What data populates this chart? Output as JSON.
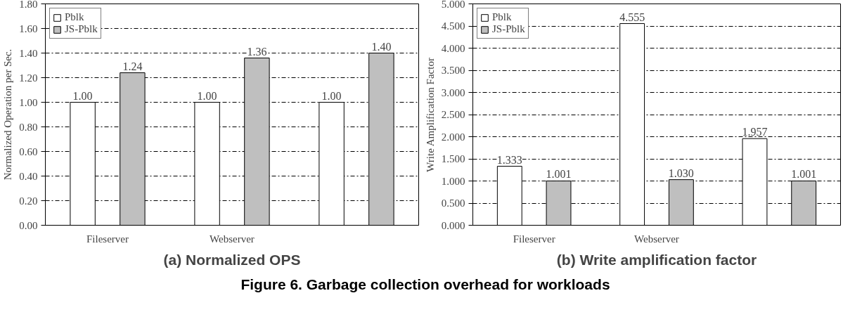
{
  "chart_data": [
    {
      "type": "bar",
      "title": "(a) Normalized OPS",
      "ylabel": "Normalized Operation per Sec.",
      "categories": [
        "Fileserver",
        "Webserver",
        null
      ],
      "series": [
        {
          "name": "Pblk",
          "color": "#ffffff",
          "values": [
            1.0,
            1.0,
            1.0
          ],
          "value_labels": [
            "1.00",
            "1.00",
            "1.00"
          ]
        },
        {
          "name": "JS-Pblk",
          "color": "#bfbfbf",
          "values": [
            1.24,
            1.36,
            1.4
          ],
          "value_labels": [
            "1.24",
            "1.36",
            "1.40"
          ]
        }
      ],
      "ylim": [
        0,
        1.8
      ],
      "yticks": [
        {
          "value": 0,
          "label": "0.00"
        },
        {
          "value": 0.2,
          "label": "0.20"
        },
        {
          "value": 0.4,
          "label": "0.40"
        },
        {
          "value": 0.6,
          "label": "0.60"
        },
        {
          "value": 0.8,
          "label": "0.80"
        },
        {
          "value": 1.0,
          "label": "1.00"
        },
        {
          "value": 1.2,
          "label": "1.20"
        },
        {
          "value": 1.4,
          "label": "1.40"
        },
        {
          "value": 1.6,
          "label": "1.60"
        },
        {
          "value": 1.8,
          "label": "1.80"
        }
      ],
      "grid": "y",
      "legend": "top left"
    },
    {
      "type": "bar",
      "title": "(b) Write amplification factor",
      "ylabel": "Write Amplification Factor",
      "categories": [
        "Fileserver",
        "Webserver",
        null
      ],
      "series": [
        {
          "name": "Pblk",
          "color": "#ffffff",
          "values": [
            1.333,
            4.555,
            1.957
          ],
          "value_labels": [
            "1.333",
            "4.555",
            "1.957"
          ]
        },
        {
          "name": "JS-Pblk",
          "color": "#bfbfbf",
          "values": [
            1.001,
            1.03,
            1.001
          ],
          "value_labels": [
            "1.001",
            "1.030",
            "1.001"
          ]
        }
      ],
      "ylim": [
        0,
        5
      ],
      "yticks": [
        {
          "value": 0,
          "label": "0.000"
        },
        {
          "value": 0.5,
          "label": "0.500"
        },
        {
          "value": 1.0,
          "label": "1.000"
        },
        {
          "value": 1.5,
          "label": "1.500"
        },
        {
          "value": 2.0,
          "label": "2.000"
        },
        {
          "value": 2.5,
          "label": "2.500"
        },
        {
          "value": 3.0,
          "label": "3.000"
        },
        {
          "value": 3.5,
          "label": "3.500"
        },
        {
          "value": 4.0,
          "label": "4.000"
        },
        {
          "value": 4.5,
          "label": "4.500"
        },
        {
          "value": 5.0,
          "label": "5.000"
        }
      ],
      "grid": "y",
      "legend": "top left",
      "annotations": [
        "Figure 6. Garbage collection overhead for workloads"
      ]
    }
  ]
}
